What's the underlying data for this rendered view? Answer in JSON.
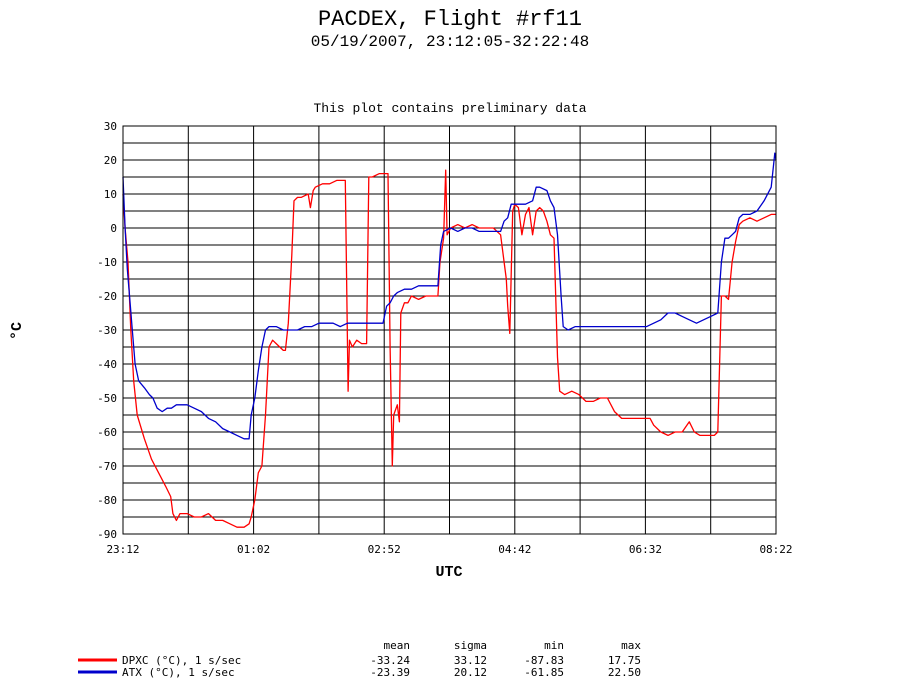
{
  "chart_data": {
    "type": "line",
    "title": "PACDEX, Flight #rf11",
    "subtitle": "05/19/2007, 23:12:05-32:22:48",
    "annotation": "This plot contains preliminary data",
    "xlabel": "UTC",
    "ylabel": "°C",
    "xlim": [
      23.2,
      32.3667
    ],
    "ylim": [
      -90,
      30
    ],
    "grid": true,
    "x_ticks": [
      {
        "value": 23.2,
        "label": "23:12"
      },
      {
        "value": 25.0333,
        "label": "01:02"
      },
      {
        "value": 26.8667,
        "label": "02:52"
      },
      {
        "value": 28.7,
        "label": "04:42"
      },
      {
        "value": 30.5333,
        "label": "06:32"
      },
      {
        "value": 32.3667,
        "label": "08:22"
      }
    ],
    "y_ticks": [
      30,
      20,
      10,
      0,
      -10,
      -20,
      -30,
      -40,
      -50,
      -60,
      -70,
      -80,
      -90
    ],
    "stats_headers": [
      "mean",
      "sigma",
      "min",
      "max"
    ],
    "series": [
      {
        "name": "DPXC (°C), 1 s/sec",
        "color": "#ff0000",
        "stats": [
          "-33.24",
          "33.12",
          "-87.83",
          "17.75"
        ],
        "points": [
          [
            23.2,
            10
          ],
          [
            23.23,
            0
          ],
          [
            23.27,
            -10
          ],
          [
            23.31,
            -30
          ],
          [
            23.35,
            -45
          ],
          [
            23.4,
            -55
          ],
          [
            23.5,
            -62
          ],
          [
            23.6,
            -68
          ],
          [
            23.7,
            -72
          ],
          [
            23.8,
            -76
          ],
          [
            23.87,
            -79
          ],
          [
            23.9,
            -84
          ],
          [
            23.95,
            -86
          ],
          [
            24.0,
            -84
          ],
          [
            24.1,
            -84
          ],
          [
            24.2,
            -85
          ],
          [
            24.3,
            -85
          ],
          [
            24.4,
            -84
          ],
          [
            24.5,
            -86
          ],
          [
            24.6,
            -86
          ],
          [
            24.7,
            -87
          ],
          [
            24.8,
            -88
          ],
          [
            24.9,
            -88
          ],
          [
            24.97,
            -87
          ],
          [
            25.0,
            -85
          ],
          [
            25.05,
            -80
          ],
          [
            25.1,
            -72
          ],
          [
            25.15,
            -70
          ],
          [
            25.2,
            -55
          ],
          [
            25.25,
            -35
          ],
          [
            25.3,
            -33
          ],
          [
            25.35,
            -34
          ],
          [
            25.4,
            -35
          ],
          [
            25.45,
            -36
          ],
          [
            25.48,
            -36
          ],
          [
            25.52,
            -28
          ],
          [
            25.57,
            -8
          ],
          [
            25.6,
            8
          ],
          [
            25.65,
            9
          ],
          [
            25.7,
            9
          ],
          [
            25.8,
            10
          ],
          [
            25.83,
            6
          ],
          [
            25.87,
            11
          ],
          [
            25.9,
            12
          ],
          [
            26.0,
            13
          ],
          [
            26.1,
            13
          ],
          [
            26.2,
            14
          ],
          [
            26.32,
            14
          ],
          [
            26.36,
            -48
          ],
          [
            26.38,
            -33
          ],
          [
            26.42,
            -35
          ],
          [
            26.48,
            -33
          ],
          [
            26.55,
            -34
          ],
          [
            26.62,
            -34
          ],
          [
            26.65,
            15
          ],
          [
            26.7,
            15
          ],
          [
            26.8,
            16
          ],
          [
            26.92,
            16
          ],
          [
            26.95,
            -35
          ],
          [
            26.98,
            -70
          ],
          [
            27.0,
            -55
          ],
          [
            27.05,
            -52
          ],
          [
            27.08,
            -57
          ],
          [
            27.1,
            -25
          ],
          [
            27.15,
            -22
          ],
          [
            27.2,
            -22
          ],
          [
            27.25,
            -20
          ],
          [
            27.35,
            -21
          ],
          [
            27.45,
            -20
          ],
          [
            27.55,
            -20
          ],
          [
            27.62,
            -20
          ],
          [
            27.65,
            -10
          ],
          [
            27.7,
            -3
          ],
          [
            27.73,
            17
          ],
          [
            27.75,
            -2
          ],
          [
            27.8,
            0
          ],
          [
            27.9,
            1
          ],
          [
            28.0,
            0
          ],
          [
            28.1,
            1
          ],
          [
            28.2,
            0
          ],
          [
            28.3,
            0
          ],
          [
            28.4,
            0
          ],
          [
            28.5,
            -2
          ],
          [
            28.55,
            -10
          ],
          [
            28.58,
            -15
          ],
          [
            28.6,
            -23
          ],
          [
            28.63,
            -31
          ],
          [
            28.67,
            5
          ],
          [
            28.7,
            7
          ],
          [
            28.75,
            6
          ],
          [
            28.8,
            -2
          ],
          [
            28.85,
            4
          ],
          [
            28.9,
            6
          ],
          [
            28.95,
            -2
          ],
          [
            29.0,
            5
          ],
          [
            29.05,
            6
          ],
          [
            29.1,
            5
          ],
          [
            29.15,
            2
          ],
          [
            29.2,
            -2
          ],
          [
            29.25,
            -3
          ],
          [
            29.3,
            -38
          ],
          [
            29.33,
            -48
          ],
          [
            29.4,
            -49
          ],
          [
            29.5,
            -48
          ],
          [
            29.6,
            -49
          ],
          [
            29.7,
            -51
          ],
          [
            29.8,
            -51
          ],
          [
            29.9,
            -50
          ],
          [
            30.0,
            -50
          ],
          [
            30.1,
            -54
          ],
          [
            30.2,
            -56
          ],
          [
            30.3,
            -56
          ],
          [
            30.4,
            -56
          ],
          [
            30.5,
            -56
          ],
          [
            30.6,
            -56
          ],
          [
            30.65,
            -58
          ],
          [
            30.75,
            -60
          ],
          [
            30.85,
            -61
          ],
          [
            30.95,
            -60
          ],
          [
            31.05,
            -60
          ],
          [
            31.15,
            -57
          ],
          [
            31.22,
            -60
          ],
          [
            31.3,
            -61
          ],
          [
            31.4,
            -61
          ],
          [
            31.5,
            -61
          ],
          [
            31.55,
            -60
          ],
          [
            31.6,
            -20
          ],
          [
            31.65,
            -20
          ],
          [
            31.7,
            -21
          ],
          [
            31.75,
            -10
          ],
          [
            31.8,
            -4
          ],
          [
            31.85,
            1
          ],
          [
            31.9,
            2
          ],
          [
            32.0,
            3
          ],
          [
            32.1,
            2
          ],
          [
            32.2,
            3
          ],
          [
            32.3,
            4
          ],
          [
            32.3667,
            4
          ]
        ]
      },
      {
        "name": "ATX (°C), 1 s/sec",
        "color": "#0000cc",
        "stats": [
          "-23.39",
          "20.12",
          "-61.85",
          "22.50"
        ],
        "points": [
          [
            23.2,
            15
          ],
          [
            23.23,
            0
          ],
          [
            23.26,
            -12
          ],
          [
            23.3,
            -22
          ],
          [
            23.33,
            -30
          ],
          [
            23.37,
            -40
          ],
          [
            23.42,
            -45
          ],
          [
            23.5,
            -47
          ],
          [
            23.57,
            -49
          ],
          [
            23.62,
            -50
          ],
          [
            23.68,
            -53
          ],
          [
            23.75,
            -54
          ],
          [
            23.82,
            -53
          ],
          [
            23.88,
            -53
          ],
          [
            23.95,
            -52
          ],
          [
            24.0,
            -52
          ],
          [
            24.1,
            -52
          ],
          [
            24.2,
            -53
          ],
          [
            24.3,
            -54
          ],
          [
            24.4,
            -56
          ],
          [
            24.5,
            -57
          ],
          [
            24.6,
            -59
          ],
          [
            24.7,
            -60
          ],
          [
            24.8,
            -61
          ],
          [
            24.9,
            -62
          ],
          [
            24.97,
            -62
          ],
          [
            25.0,
            -55
          ],
          [
            25.05,
            -50
          ],
          [
            25.1,
            -42
          ],
          [
            25.15,
            -35
          ],
          [
            25.2,
            -30
          ],
          [
            25.25,
            -29
          ],
          [
            25.35,
            -29
          ],
          [
            25.45,
            -30
          ],
          [
            25.55,
            -30
          ],
          [
            25.65,
            -30
          ],
          [
            25.75,
            -29
          ],
          [
            25.85,
            -29
          ],
          [
            25.95,
            -28
          ],
          [
            26.05,
            -28
          ],
          [
            26.15,
            -28
          ],
          [
            26.25,
            -29
          ],
          [
            26.35,
            -28
          ],
          [
            26.45,
            -28
          ],
          [
            26.55,
            -28
          ],
          [
            26.65,
            -28
          ],
          [
            26.75,
            -28
          ],
          [
            26.85,
            -28
          ],
          [
            26.9,
            -23
          ],
          [
            26.95,
            -22
          ],
          [
            27.0,
            -20
          ],
          [
            27.05,
            -19
          ],
          [
            27.15,
            -18
          ],
          [
            27.25,
            -18
          ],
          [
            27.35,
            -17
          ],
          [
            27.45,
            -17
          ],
          [
            27.55,
            -17
          ],
          [
            27.62,
            -17
          ],
          [
            27.66,
            -5
          ],
          [
            27.7,
            -1
          ],
          [
            27.8,
            0
          ],
          [
            27.9,
            -1
          ],
          [
            28.0,
            0
          ],
          [
            28.1,
            0
          ],
          [
            28.2,
            -1
          ],
          [
            28.3,
            -1
          ],
          [
            28.4,
            -1
          ],
          [
            28.5,
            -1
          ],
          [
            28.55,
            2
          ],
          [
            28.6,
            3
          ],
          [
            28.65,
            7
          ],
          [
            28.75,
            7
          ],
          [
            28.85,
            7
          ],
          [
            28.95,
            8
          ],
          [
            29.0,
            12
          ],
          [
            29.05,
            12
          ],
          [
            29.15,
            11
          ],
          [
            29.2,
            8
          ],
          [
            29.25,
            6
          ],
          [
            29.3,
            -2
          ],
          [
            29.35,
            -20
          ],
          [
            29.38,
            -29
          ],
          [
            29.45,
            -30
          ],
          [
            29.55,
            -29
          ],
          [
            29.65,
            -29
          ],
          [
            29.75,
            -29
          ],
          [
            29.85,
            -29
          ],
          [
            29.95,
            -29
          ],
          [
            30.05,
            -29
          ],
          [
            30.15,
            -29
          ],
          [
            30.25,
            -29
          ],
          [
            30.35,
            -29
          ],
          [
            30.45,
            -29
          ],
          [
            30.55,
            -29
          ],
          [
            30.65,
            -28
          ],
          [
            30.75,
            -27
          ],
          [
            30.85,
            -25
          ],
          [
            30.95,
            -25
          ],
          [
            31.05,
            -26
          ],
          [
            31.15,
            -27
          ],
          [
            31.25,
            -28
          ],
          [
            31.35,
            -27
          ],
          [
            31.45,
            -26
          ],
          [
            31.55,
            -25
          ],
          [
            31.6,
            -10
          ],
          [
            31.65,
            -3
          ],
          [
            31.7,
            -3
          ],
          [
            31.75,
            -2
          ],
          [
            31.8,
            -1
          ],
          [
            31.85,
            3
          ],
          [
            31.9,
            4
          ],
          [
            32.0,
            4
          ],
          [
            32.1,
            5
          ],
          [
            32.2,
            8
          ],
          [
            32.3,
            12
          ],
          [
            32.35,
            22
          ],
          [
            32.3667,
            20
          ]
        ]
      }
    ]
  }
}
